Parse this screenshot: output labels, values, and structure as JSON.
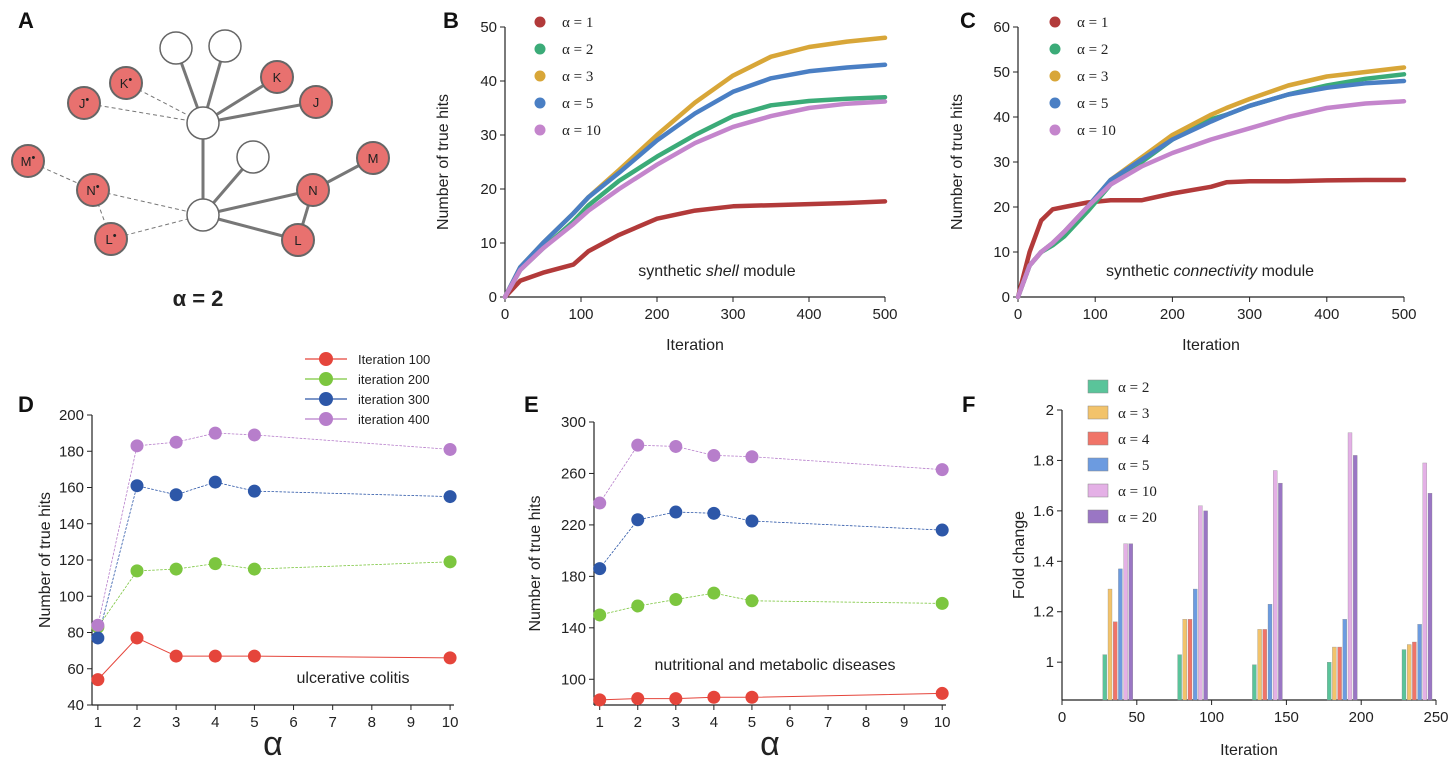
{
  "panels": {
    "A": {
      "letter": "A",
      "alpha_label": "α = 2",
      "nodes": [
        {
          "id": "K*",
          "label": "K",
          "mark": "•",
          "red": true
        },
        {
          "id": "J*",
          "label": "J",
          "mark": "•",
          "red": true
        },
        {
          "id": "M*",
          "label": "M",
          "mark": "•",
          "red": true
        },
        {
          "id": "N*",
          "label": "N",
          "mark": "•",
          "red": true
        },
        {
          "id": "L*",
          "label": "L",
          "mark": "•",
          "red": true
        },
        {
          "id": "K",
          "label": "K",
          "mark": "",
          "red": true
        },
        {
          "id": "J",
          "label": "J",
          "mark": "",
          "red": true
        },
        {
          "id": "M",
          "label": "M",
          "mark": "",
          "red": true
        },
        {
          "id": "N",
          "label": "N",
          "mark": "",
          "red": true
        },
        {
          "id": "L",
          "label": "L",
          "mark": "",
          "red": true
        }
      ],
      "colors": {
        "red_node": "#e8716f",
        "node_stroke": "#666666",
        "edge": "#777777"
      }
    }
  },
  "chart_data": [
    {
      "panel": "B",
      "letter": "B",
      "type": "line",
      "xlabel": "Iteration",
      "ylabel": "Number of true hits",
      "xlim": [
        0,
        500
      ],
      "ylim": [
        0,
        50
      ],
      "xticks": [
        0,
        100,
        200,
        300,
        400,
        500
      ],
      "yticks": [
        0,
        10,
        20,
        30,
        40,
        50
      ],
      "annotation_prefix": "synthetic ",
      "annotation_italic": "shell",
      "annotation_suffix": " module",
      "x": [
        0,
        20,
        50,
        90,
        110,
        150,
        200,
        250,
        300,
        350,
        400,
        450,
        500
      ],
      "series": [
        {
          "name": "α =  1",
          "color": "#b23a3a",
          "values": [
            0,
            3,
            4.5,
            6,
            8.5,
            11.5,
            14.5,
            16,
            16.8,
            17,
            17.2,
            17.4,
            17.7
          ]
        },
        {
          "name": "α =  2",
          "color": "#3bab78",
          "values": [
            0,
            5,
            9,
            14,
            17,
            21.5,
            26,
            30,
            33.5,
            35.5,
            36.3,
            36.7,
            37
          ]
        },
        {
          "name": "α =  3",
          "color": "#d8a638",
          "values": [
            0,
            5.5,
            10,
            15.5,
            18.5,
            23.5,
            30,
            36,
            41,
            44.5,
            46.3,
            47.3,
            48
          ]
        },
        {
          "name": "α =  5",
          "color": "#4a7fc4",
          "values": [
            0,
            5.5,
            10,
            15.5,
            18.5,
            23,
            29,
            34,
            38,
            40.5,
            41.8,
            42.5,
            43
          ]
        },
        {
          "name": "α =  10",
          "color": "#c485cc",
          "values": [
            0,
            5,
            9,
            13.5,
            16,
            20,
            24.5,
            28.5,
            31.5,
            33.5,
            35,
            35.8,
            36.2
          ]
        }
      ]
    },
    {
      "panel": "C",
      "letter": "C",
      "type": "line",
      "xlabel": "Iteration",
      "ylabel": "Number of true hits",
      "xlim": [
        0,
        500
      ],
      "ylim": [
        0,
        60
      ],
      "xticks": [
        0,
        100,
        200,
        300,
        400,
        500
      ],
      "yticks": [
        0,
        10,
        20,
        30,
        40,
        50,
        60
      ],
      "annotation_prefix": "synthetic ",
      "annotation_italic": "connectivity",
      "annotation_suffix": " module",
      "x": [
        0,
        15,
        30,
        45,
        60,
        90,
        120,
        160,
        200,
        250,
        270,
        300,
        350,
        400,
        450,
        500
      ],
      "series": [
        {
          "name": "α =  1",
          "color": "#b23a3a",
          "values": [
            0,
            10,
            17,
            19.5,
            20,
            21,
            21.5,
            21.5,
            23,
            24.5,
            25.5,
            25.7,
            25.7,
            25.9,
            26,
            26
          ]
        },
        {
          "name": "α =  2",
          "color": "#3bab78",
          "values": [
            0,
            7,
            10,
            11.5,
            13.5,
            19,
            25,
            30,
            35,
            39.5,
            40.5,
            42.5,
            45,
            47,
            48.5,
            49.5
          ]
        },
        {
          "name": "α =  3",
          "color": "#d8a638",
          "values": [
            0,
            7,
            10,
            12,
            14.5,
            20,
            26,
            31,
            36,
            40.5,
            42,
            44,
            47,
            49,
            50,
            51
          ]
        },
        {
          "name": "α =  5",
          "color": "#4a7fc4",
          "values": [
            0,
            7,
            10,
            12,
            14.5,
            20,
            26,
            30.5,
            35,
            39,
            40.5,
            42.5,
            45,
            46.5,
            47.5,
            48
          ]
        },
        {
          "name": "α =  10",
          "color": "#c485cc",
          "values": [
            0,
            7,
            10,
            12,
            14.5,
            20,
            25,
            29,
            32,
            35,
            36,
            37.5,
            40,
            42,
            43,
            43.5
          ]
        }
      ]
    },
    {
      "panel": "D",
      "letter": "D",
      "type": "line",
      "xlabel": "α",
      "ylabel": "Number of true hits",
      "xlim": [
        0.85,
        10.1
      ],
      "ylim": [
        40,
        200
      ],
      "xticks": [
        1,
        2,
        3,
        4,
        5,
        6,
        7,
        8,
        9,
        10
      ],
      "yticks": [
        40,
        60,
        80,
        100,
        120,
        140,
        160,
        180,
        200
      ],
      "annotation": "ulcerative colitis",
      "x": [
        1,
        2,
        3,
        4,
        5,
        10
      ],
      "series": [
        {
          "name": "Iteration 100",
          "color": "#e5453b",
          "values": [
            54,
            77,
            67,
            67,
            67,
            66
          ]
        },
        {
          "name": "iteration 200",
          "color": "#7cc63f",
          "values": [
            83,
            114,
            115,
            118,
            115,
            119
          ]
        },
        {
          "name": "iteration 300",
          "color": "#2d57a8",
          "values": [
            77,
            161,
            156,
            163,
            158,
            155
          ]
        },
        {
          "name": "iteration 400",
          "color": "#b77ecb",
          "values": [
            84,
            183,
            185,
            190,
            189,
            181
          ]
        }
      ]
    },
    {
      "panel": "E",
      "letter": "E",
      "type": "line",
      "xlabel": "α",
      "ylabel": "Number of true hits",
      "xlim": [
        0.85,
        10.1
      ],
      "ylim": [
        80,
        300
      ],
      "xticks": [
        1,
        2,
        3,
        4,
        5,
        6,
        7,
        8,
        9,
        10
      ],
      "yticks": [
        100,
        140,
        180,
        220,
        260,
        300
      ],
      "annotation": "nutritional and metabolic diseases",
      "x": [
        1,
        2,
        3,
        4,
        5,
        10
      ],
      "series": [
        {
          "name": "Iteration 100",
          "color": "#e5453b",
          "values": [
            84,
            85,
            85,
            86,
            86,
            89
          ]
        },
        {
          "name": "iteration 200",
          "color": "#7cc63f",
          "values": [
            150,
            157,
            162,
            167,
            161,
            159
          ]
        },
        {
          "name": "iteration 300",
          "color": "#2d57a8",
          "values": [
            186,
            224,
            230,
            229,
            223,
            216
          ]
        },
        {
          "name": "iteration 400",
          "color": "#b77ecb",
          "values": [
            237,
            282,
            281,
            274,
            273,
            263
          ]
        }
      ]
    },
    {
      "panel": "F",
      "letter": "F",
      "type": "bar",
      "xlabel": "Iteration",
      "ylabel": "Fold change",
      "xlim": [
        0,
        250
      ],
      "ylim": [
        0.85,
        2.0
      ],
      "xticks": [
        0,
        50,
        100,
        150,
        200,
        250
      ],
      "yticks": [
        1,
        1.2,
        1.4,
        1.6,
        1.8,
        2
      ],
      "categories": [
        50,
        100,
        150,
        200,
        250
      ],
      "series": [
        {
          "name": "α =  2",
          "color": "#5ac49a",
          "values": [
            1.03,
            1.03,
            0.99,
            1.0,
            1.05
          ]
        },
        {
          "name": "α =  3",
          "color": "#f2c36b",
          "values": [
            1.29,
            1.17,
            1.13,
            1.06,
            1.07
          ]
        },
        {
          "name": "α =  4",
          "color": "#f07468",
          "values": [
            1.16,
            1.17,
            1.13,
            1.06,
            1.08
          ]
        },
        {
          "name": "α =  5",
          "color": "#6c9be0",
          "values": [
            1.37,
            1.29,
            1.23,
            1.17,
            1.15
          ]
        },
        {
          "name": "α =  10",
          "color": "#e4b0e6",
          "values": [
            1.47,
            1.62,
            1.76,
            1.91,
            1.79
          ]
        },
        {
          "name": "α =  20",
          "color": "#9a76c4",
          "values": [
            1.47,
            1.6,
            1.71,
            1.82,
            1.67
          ]
        }
      ]
    }
  ]
}
